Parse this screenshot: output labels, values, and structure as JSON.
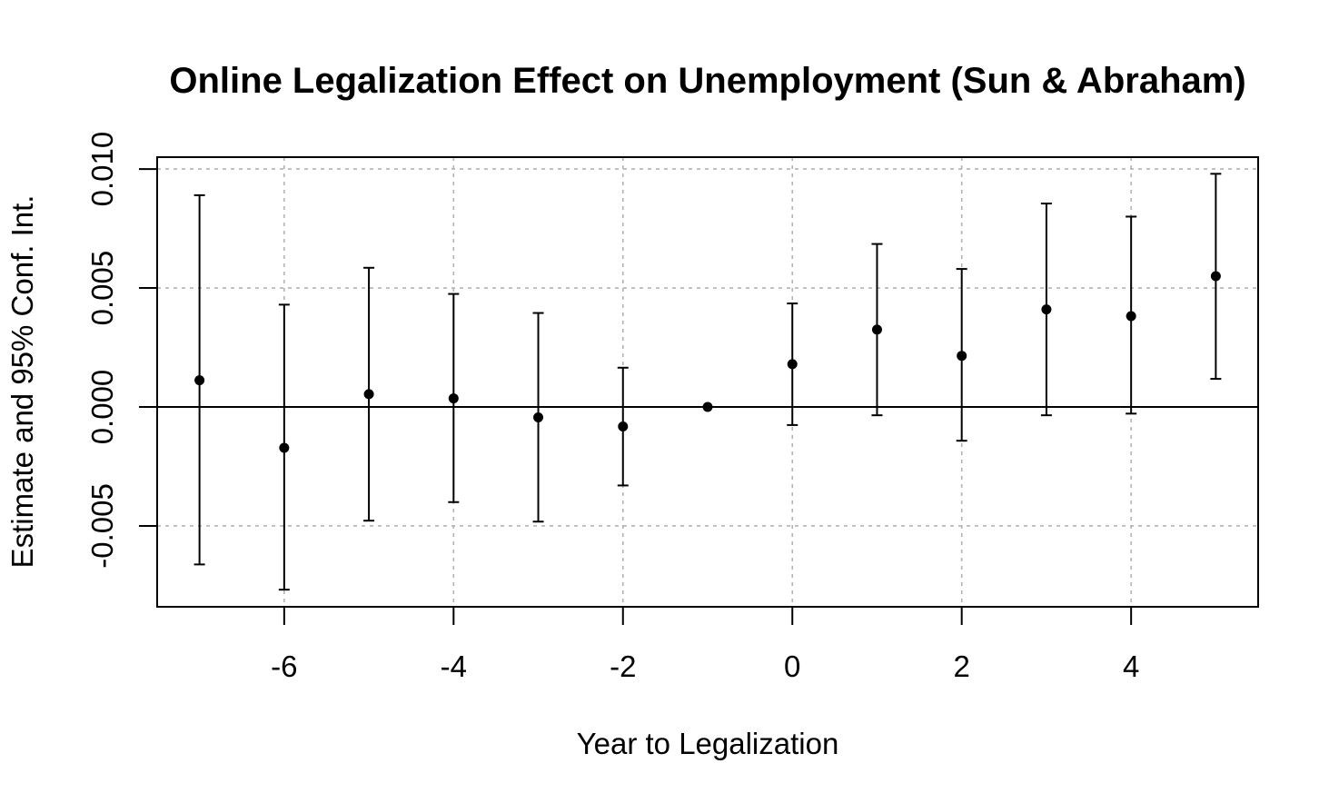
{
  "chart_data": {
    "type": "scatter",
    "title": "Online Legalization Effect on Unemployment (Sun & Abraham)",
    "xlabel": "Year to Legalization",
    "ylabel": "Estimate and 95% Conf. Int.",
    "xlim": [
      -7.5,
      5.5
    ],
    "ylim": [
      -0.0084,
      0.0105
    ],
    "x_ticks": [
      -6,
      -4,
      -2,
      0,
      2,
      4
    ],
    "x_tick_labels": [
      "-6",
      "-4",
      "-2",
      "0",
      "2",
      "4"
    ],
    "y_ticks": [
      -0.005,
      0.0,
      0.005,
      0.01
    ],
    "y_tick_labels": [
      "-0.005",
      "0.000",
      "0.005",
      "0.010"
    ],
    "grid": true,
    "reference_line_y": 0,
    "colors": {
      "points": "#000000",
      "error_bars": "#000000",
      "grid": "#b3b3b3"
    },
    "series": [
      {
        "x": [
          -7,
          -6,
          -5,
          -4,
          -3,
          -2,
          -1,
          0,
          1,
          2,
          3,
          4,
          5
        ],
        "estimate": [
          0.00112,
          -0.00172,
          0.00054,
          0.00036,
          -0.00044,
          -0.00082,
          0.0,
          0.0018,
          0.00325,
          0.00215,
          0.0041,
          0.00382,
          0.0055
        ],
        "ci_low": [
          -0.00662,
          -0.00768,
          -0.00478,
          -0.004,
          -0.00482,
          -0.0033,
          0.0,
          -0.00076,
          -0.00035,
          -0.00142,
          -0.00035,
          -0.00028,
          0.00118
        ],
        "ci_high": [
          0.0089,
          0.0043,
          0.00585,
          0.00475,
          0.00395,
          0.00165,
          0.0,
          0.00435,
          0.00685,
          0.0058,
          0.00855,
          0.008,
          0.0098
        ]
      }
    ]
  }
}
